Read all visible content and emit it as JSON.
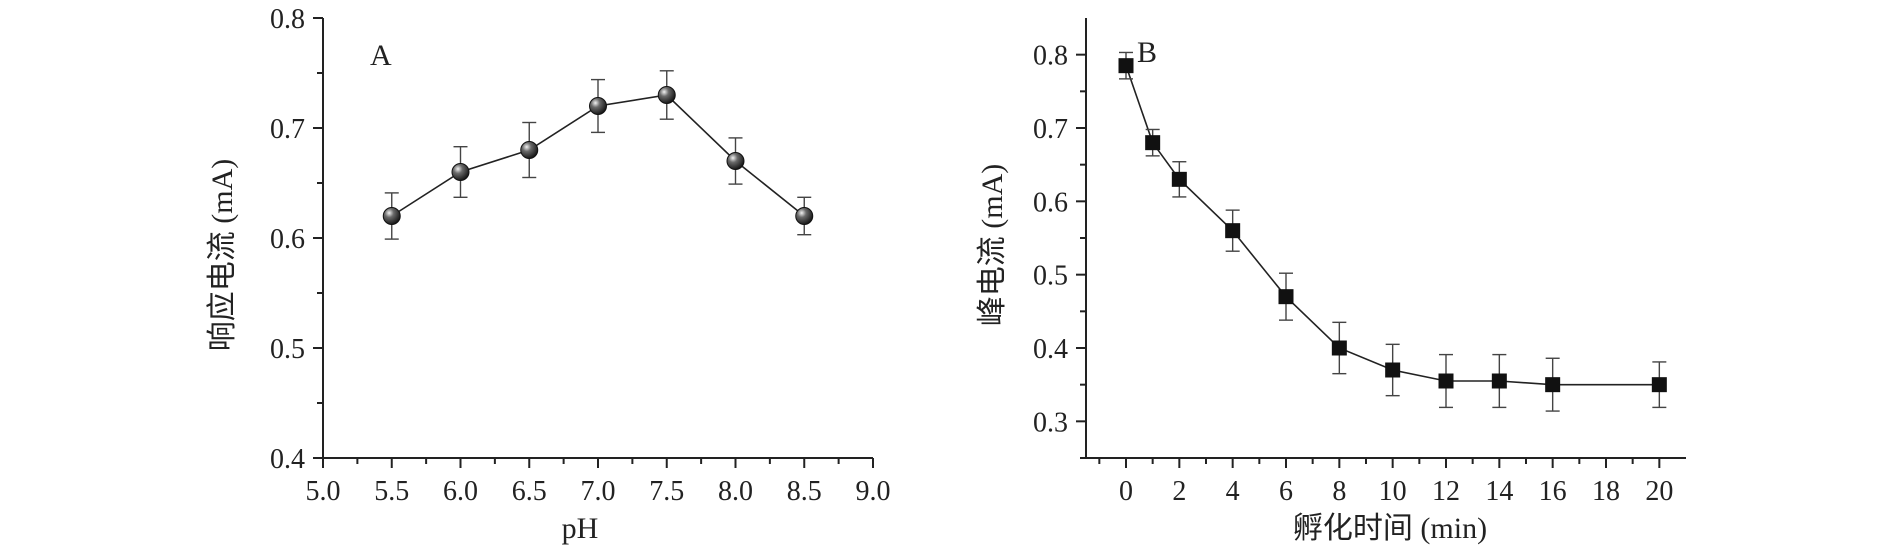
{
  "chart_data": [
    {
      "id": "A",
      "type": "line",
      "panel_label": "A",
      "title": "",
      "xlabel": "pH",
      "ylabel": "响应电流 (mA)",
      "xlim": [
        5.0,
        9.0
      ],
      "ylim": [
        0.4,
        0.8
      ],
      "x_ticks": [
        5.0,
        5.5,
        6.0,
        6.5,
        7.0,
        7.5,
        8.0,
        8.5,
        9.0
      ],
      "x_tick_labels": [
        "5.0",
        "5.5",
        "6.0",
        "6.5",
        "7.0",
        "7.5",
        "8.0",
        "8.5",
        "9.0"
      ],
      "y_ticks": [
        0.4,
        0.5,
        0.6,
        0.7,
        0.8
      ],
      "y_tick_labels": [
        "0.4",
        "0.5",
        "0.6",
        "0.7",
        "0.8"
      ],
      "marker": "sphere",
      "grid": false,
      "series": [
        {
          "x": [
            5.5,
            6.0,
            6.5,
            7.0,
            7.5,
            8.0,
            8.5
          ],
          "y": [
            0.62,
            0.66,
            0.68,
            0.72,
            0.73,
            0.67,
            0.62
          ],
          "error": [
            0.021,
            0.023,
            0.025,
            0.024,
            0.022,
            0.021,
            0.017
          ]
        }
      ]
    },
    {
      "id": "B",
      "type": "line",
      "panel_label": "B",
      "title": "",
      "xlabel": "孵化时间 (min)",
      "ylabel": "峰电流 (mA)",
      "xlim": [
        -1.5,
        21
      ],
      "ylim": [
        0.25,
        0.85
      ],
      "x_ticks": [
        0,
        2,
        4,
        6,
        8,
        10,
        12,
        14,
        16,
        18,
        20
      ],
      "x_tick_labels": [
        "0",
        "2",
        "4",
        "6",
        "8",
        "10",
        "12",
        "14",
        "16",
        "18",
        "20"
      ],
      "y_ticks": [
        0.3,
        0.4,
        0.5,
        0.6,
        0.7,
        0.8
      ],
      "y_tick_labels": [
        "0.3",
        "0.4",
        "0.5",
        "0.6",
        "0.7",
        "0.8"
      ],
      "marker": "square",
      "grid": false,
      "series": [
        {
          "x": [
            0,
            1,
            2,
            4,
            6,
            8,
            10,
            12,
            14,
            16,
            20
          ],
          "y": [
            0.785,
            0.68,
            0.63,
            0.56,
            0.47,
            0.4,
            0.37,
            0.355,
            0.355,
            0.35,
            0.35
          ],
          "error": [
            0.018,
            0.018,
            0.024,
            0.028,
            0.032,
            0.035,
            0.035,
            0.036,
            0.036,
            0.036,
            0.031
          ]
        }
      ]
    }
  ]
}
